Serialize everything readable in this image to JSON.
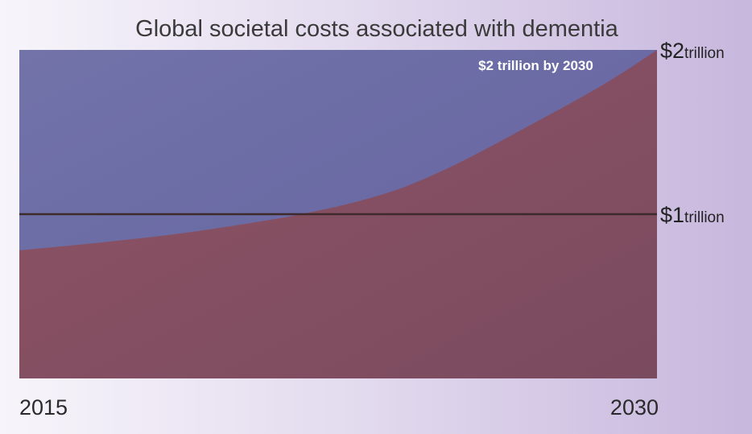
{
  "chart_data": {
    "type": "area",
    "title": "Global societal costs associated with dementia",
    "x_ticks": [
      "2015",
      "2030"
    ],
    "y_ticks": [
      {
        "value": 1,
        "main": "$1",
        "sub": "trillion"
      },
      {
        "value": 2,
        "main": "$2",
        "sub": "trillion"
      }
    ],
    "ylim": [
      0,
      2
    ],
    "xlim": [
      2015,
      2030
    ],
    "reference_line": {
      "y": 1
    },
    "annotation": "$2 trillion by 2030",
    "series": [
      {
        "x": [
          2015,
          2017,
          2019,
          2021,
          2022,
          2023,
          2024,
          2025,
          2026,
          2027,
          2028,
          2029,
          2030
        ],
        "values": [
          0.78,
          0.83,
          0.89,
          0.97,
          1.02,
          1.08,
          1.16,
          1.27,
          1.4,
          1.54,
          1.68,
          1.83,
          2.0
        ]
      }
    ],
    "colors": {
      "background_area": "#6b6ba6",
      "series_fill": "#8a4f63",
      "reference_line": "#3c2a2a"
    },
    "grid": false
  }
}
